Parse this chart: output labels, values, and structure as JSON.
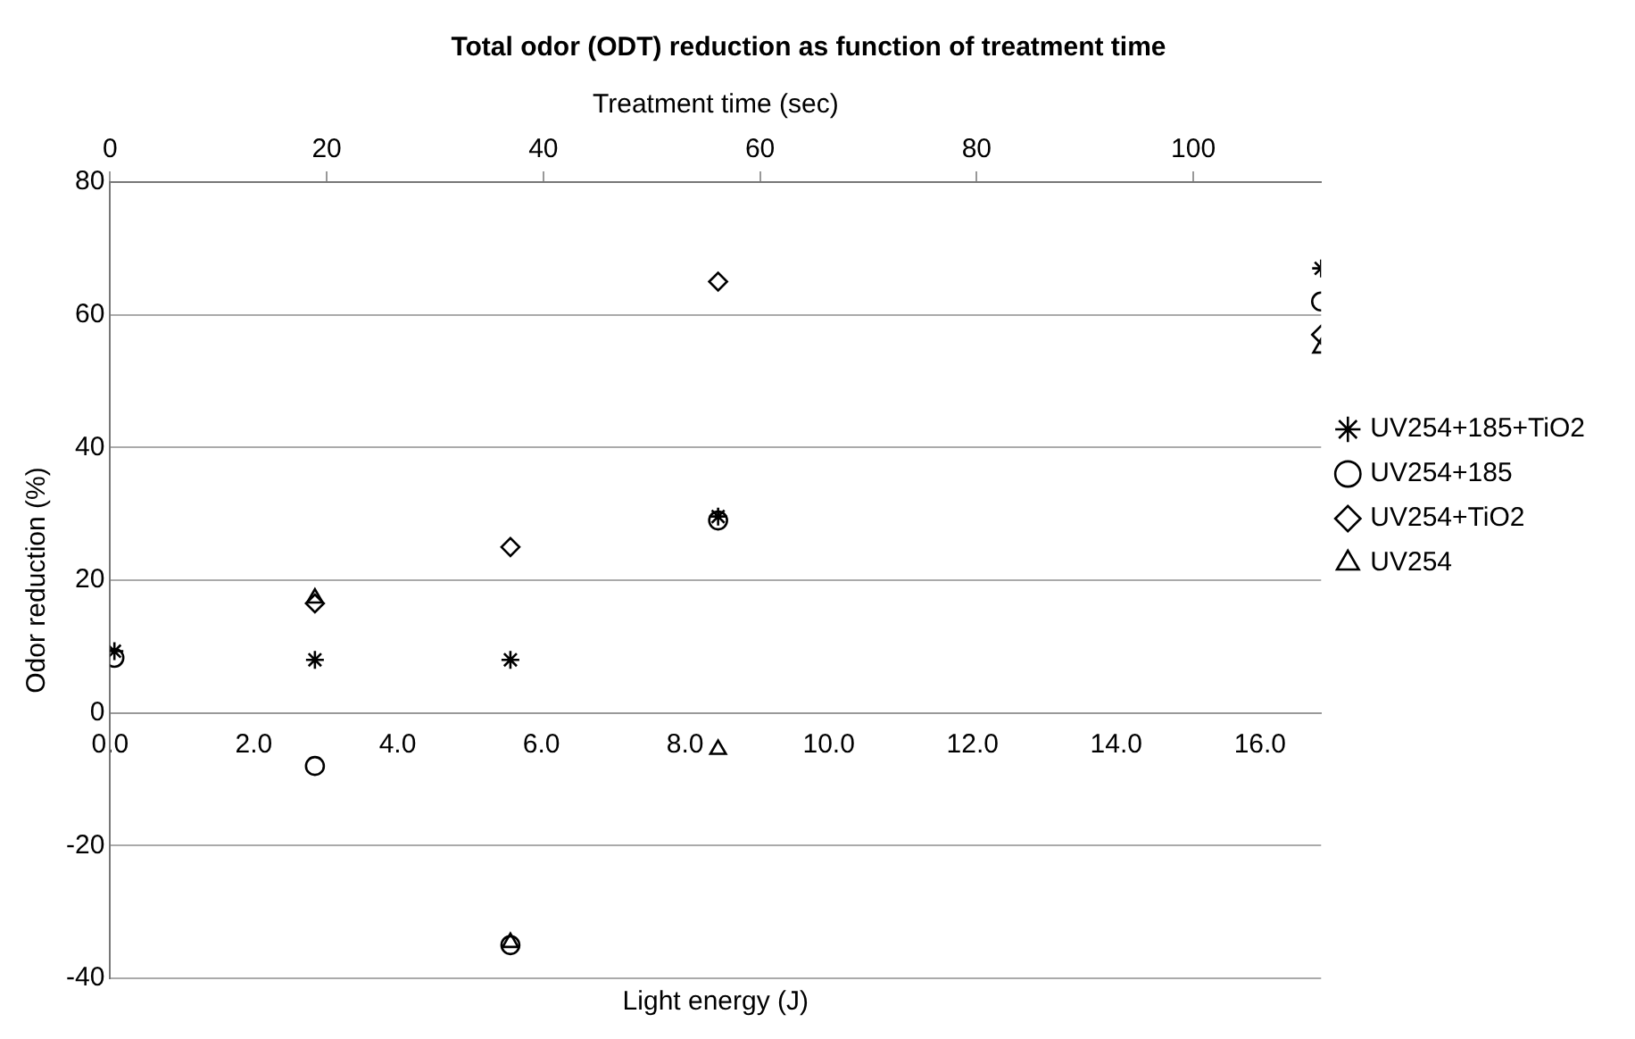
{
  "chart_data": {
    "type": "scatter",
    "title": "Total odor (ODT) reduction as function of treatment time",
    "xlabel": "Light energy (J)",
    "ylabel": "Odor reduction (%)",
    "x2label": "Treatment time (sec)",
    "x": [
      0.06,
      2.85,
      5.57,
      8.46,
      16.85
    ],
    "series": [
      {
        "name": "UV254+185+TiO2",
        "color": "#000000",
        "marker": "cross",
        "values": [
          9.3,
          8,
          8,
          29.6,
          67
        ]
      },
      {
        "name": "UV254+185",
        "color": "#000000",
        "marker": "circle",
        "values": [
          8.3,
          -8,
          -35,
          29,
          62
        ]
      },
      {
        "name": "UV254+TiO2",
        "color": "#000000",
        "marker": "diamond",
        "values": [
          null,
          16.5,
          25,
          65,
          57
        ]
      },
      {
        "name": "UV254",
        "color": "#000000",
        "marker": "triangle",
        "values": [
          null,
          17.3,
          -34.6,
          -5.5,
          55
        ]
      }
    ],
    "xlim": [
      0,
      16.85
    ],
    "xticks": [
      {
        "value": 0,
        "label": "0.0"
      },
      {
        "value": 2,
        "label": "2.0"
      },
      {
        "value": 4,
        "label": "4.0"
      },
      {
        "value": 6,
        "label": "6.0"
      },
      {
        "value": 8,
        "label": "8.0"
      },
      {
        "value": 10,
        "label": "10.0"
      },
      {
        "value": 12,
        "label": "12.0"
      },
      {
        "value": 14,
        "label": "14.0"
      },
      {
        "value": 16,
        "label": "16.0"
      }
    ],
    "x2lim": [
      0,
      111.8
    ],
    "x2ticks": [
      0,
      20,
      40,
      60,
      80,
      100
    ],
    "ylim": [
      -40,
      80
    ],
    "yticks": [
      -40,
      -20,
      0,
      20,
      40,
      60,
      80
    ],
    "grid": "y",
    "legend": "right"
  }
}
